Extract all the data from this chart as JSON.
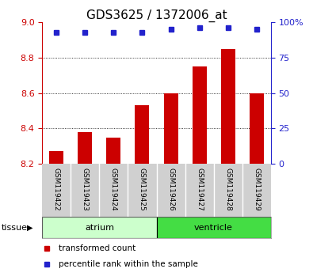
{
  "title": "GDS3625 / 1372006_at",
  "categories": [
    "GSM119422",
    "GSM119423",
    "GSM119424",
    "GSM119425",
    "GSM119426",
    "GSM119427",
    "GSM119428",
    "GSM119429"
  ],
  "bar_values": [
    8.27,
    8.38,
    8.35,
    8.53,
    8.6,
    8.75,
    8.85,
    8.6
  ],
  "percentile_values": [
    93,
    93,
    93,
    93,
    95,
    96,
    96,
    95
  ],
  "ylim_left": [
    8.2,
    9.0
  ],
  "ylim_right": [
    0,
    100
  ],
  "yticks_left": [
    8.2,
    8.4,
    8.6,
    8.8,
    9.0
  ],
  "yticks_right": [
    0,
    25,
    50,
    75,
    100
  ],
  "grid_lines": [
    8.4,
    8.6,
    8.8
  ],
  "bar_color": "#cc0000",
  "dot_color": "#2222cc",
  "bar_width": 0.5,
  "tissue_groups": [
    {
      "label": "atrium",
      "start": 0,
      "end": 3,
      "color": "#ccffcc"
    },
    {
      "label": "ventricle",
      "start": 4,
      "end": 7,
      "color": "#44dd44"
    }
  ],
  "tissue_label": "tissue",
  "legend_entries": [
    {
      "label": "transformed count",
      "color": "#cc0000"
    },
    {
      "label": "percentile rank within the sample",
      "color": "#2222cc"
    }
  ],
  "tick_color_left": "#cc0000",
  "tick_color_right": "#2222cc",
  "title_fontsize": 11,
  "tick_fontsize": 8,
  "xtick_fontsize": 6.5,
  "legend_fontsize": 7.5,
  "tissue_fontsize": 8,
  "xtick_gray": "#d0d0d0",
  "spine_gray": "#888888"
}
